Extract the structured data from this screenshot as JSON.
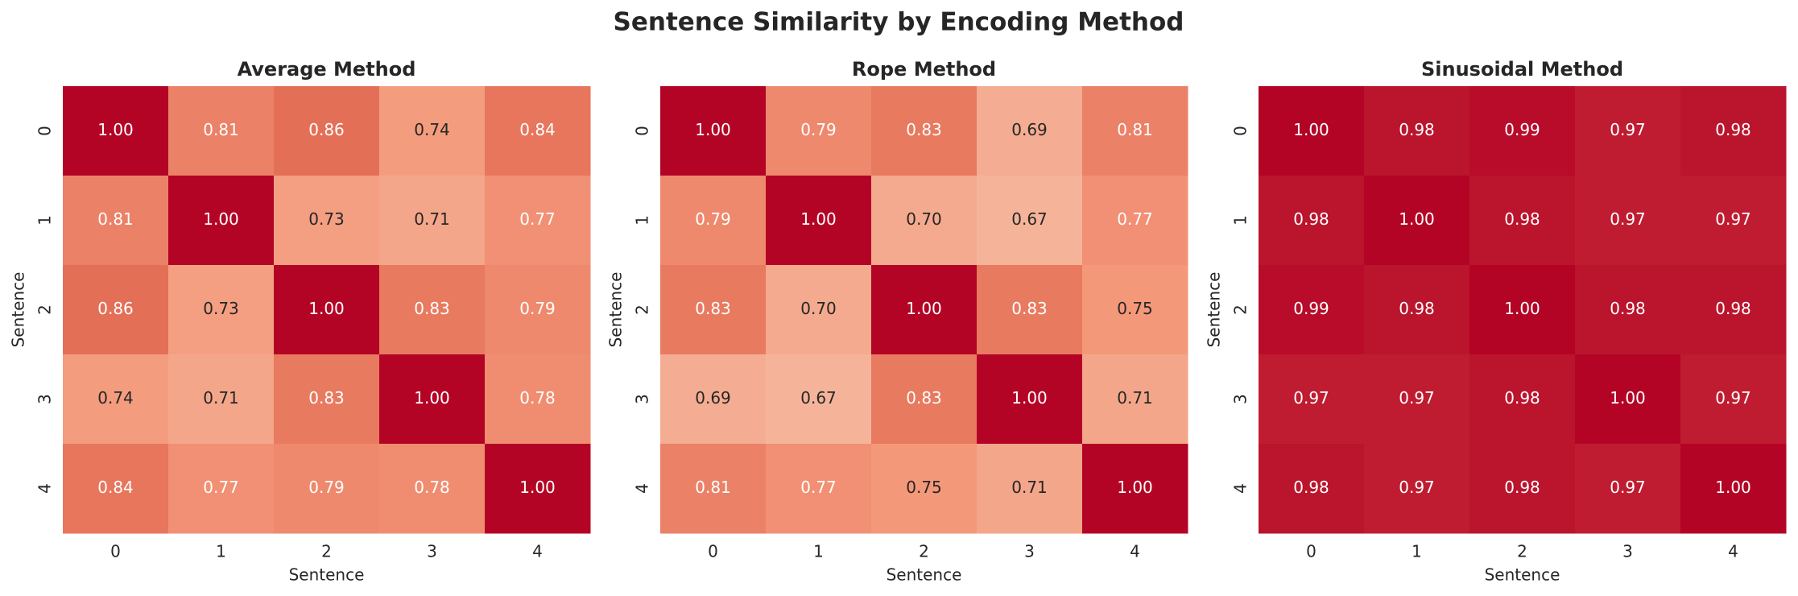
{
  "title": "Sentence Similarity by Encoding Method",
  "chart_data": [
    {
      "type": "heatmap",
      "title": "Average Method",
      "xlabel": "Sentence",
      "ylabel": "Sentence",
      "xcategories": [
        "0",
        "1",
        "2",
        "3",
        "4"
      ],
      "ycategories": [
        "0",
        "1",
        "2",
        "3",
        "4"
      ],
      "colormap": "coolwarm",
      "color_range": [
        0,
        1
      ],
      "values": [
        [
          1.0,
          0.81,
          0.86,
          0.74,
          0.84
        ],
        [
          0.81,
          1.0,
          0.73,
          0.71,
          0.77
        ],
        [
          0.86,
          0.73,
          1.0,
          0.83,
          0.79
        ],
        [
          0.74,
          0.71,
          0.83,
          1.0,
          0.78
        ],
        [
          0.84,
          0.77,
          0.79,
          0.78,
          1.0
        ]
      ],
      "value_labels": [
        [
          "1.00",
          "0.81",
          "0.86",
          "0.74",
          "0.84"
        ],
        [
          "0.81",
          "1.00",
          "0.73",
          "0.71",
          "0.77"
        ],
        [
          "0.86",
          "0.73",
          "1.00",
          "0.83",
          "0.79"
        ],
        [
          "0.74",
          "0.71",
          "0.83",
          "1.00",
          "0.78"
        ],
        [
          "0.84",
          "0.77",
          "0.79",
          "0.78",
          "1.00"
        ]
      ]
    },
    {
      "type": "heatmap",
      "title": "Rope Method",
      "xlabel": "Sentence",
      "ylabel": "Sentence",
      "xcategories": [
        "0",
        "1",
        "2",
        "3",
        "4"
      ],
      "ycategories": [
        "0",
        "1",
        "2",
        "3",
        "4"
      ],
      "colormap": "coolwarm",
      "color_range": [
        0,
        1
      ],
      "values": [
        [
          1.0,
          0.79,
          0.83,
          0.69,
          0.81
        ],
        [
          0.79,
          1.0,
          0.7,
          0.67,
          0.77
        ],
        [
          0.83,
          0.7,
          1.0,
          0.83,
          0.75
        ],
        [
          0.69,
          0.67,
          0.83,
          1.0,
          0.71
        ],
        [
          0.81,
          0.77,
          0.75,
          0.71,
          1.0
        ]
      ],
      "value_labels": [
        [
          "1.00",
          "0.79",
          "0.83",
          "0.69",
          "0.81"
        ],
        [
          "0.79",
          "1.00",
          "0.70",
          "0.67",
          "0.77"
        ],
        [
          "0.83",
          "0.70",
          "1.00",
          "0.83",
          "0.75"
        ],
        [
          "0.69",
          "0.67",
          "0.83",
          "1.00",
          "0.71"
        ],
        [
          "0.81",
          "0.77",
          "0.75",
          "0.71",
          "1.00"
        ]
      ]
    },
    {
      "type": "heatmap",
      "title": "Sinusoidal Method",
      "xlabel": "Sentence",
      "ylabel": "Sentence",
      "xcategories": [
        "0",
        "1",
        "2",
        "3",
        "4"
      ],
      "ycategories": [
        "0",
        "1",
        "2",
        "3",
        "4"
      ],
      "colormap": "coolwarm",
      "color_range": [
        0,
        1
      ],
      "values": [
        [
          1.0,
          0.98,
          0.99,
          0.97,
          0.98
        ],
        [
          0.98,
          1.0,
          0.98,
          0.97,
          0.97
        ],
        [
          0.99,
          0.98,
          1.0,
          0.98,
          0.98
        ],
        [
          0.97,
          0.97,
          0.98,
          1.0,
          0.97
        ],
        [
          0.98,
          0.97,
          0.98,
          0.97,
          1.0
        ]
      ],
      "value_labels": [
        [
          "1.00",
          "0.98",
          "0.99",
          "0.97",
          "0.98"
        ],
        [
          "0.98",
          "1.00",
          "0.98",
          "0.97",
          "0.97"
        ],
        [
          "0.99",
          "0.98",
          "1.00",
          "0.98",
          "0.98"
        ],
        [
          "0.97",
          "0.97",
          "0.98",
          "1.00",
          "0.97"
        ],
        [
          "0.98",
          "0.97",
          "0.98",
          "0.97",
          "1.00"
        ]
      ]
    }
  ]
}
